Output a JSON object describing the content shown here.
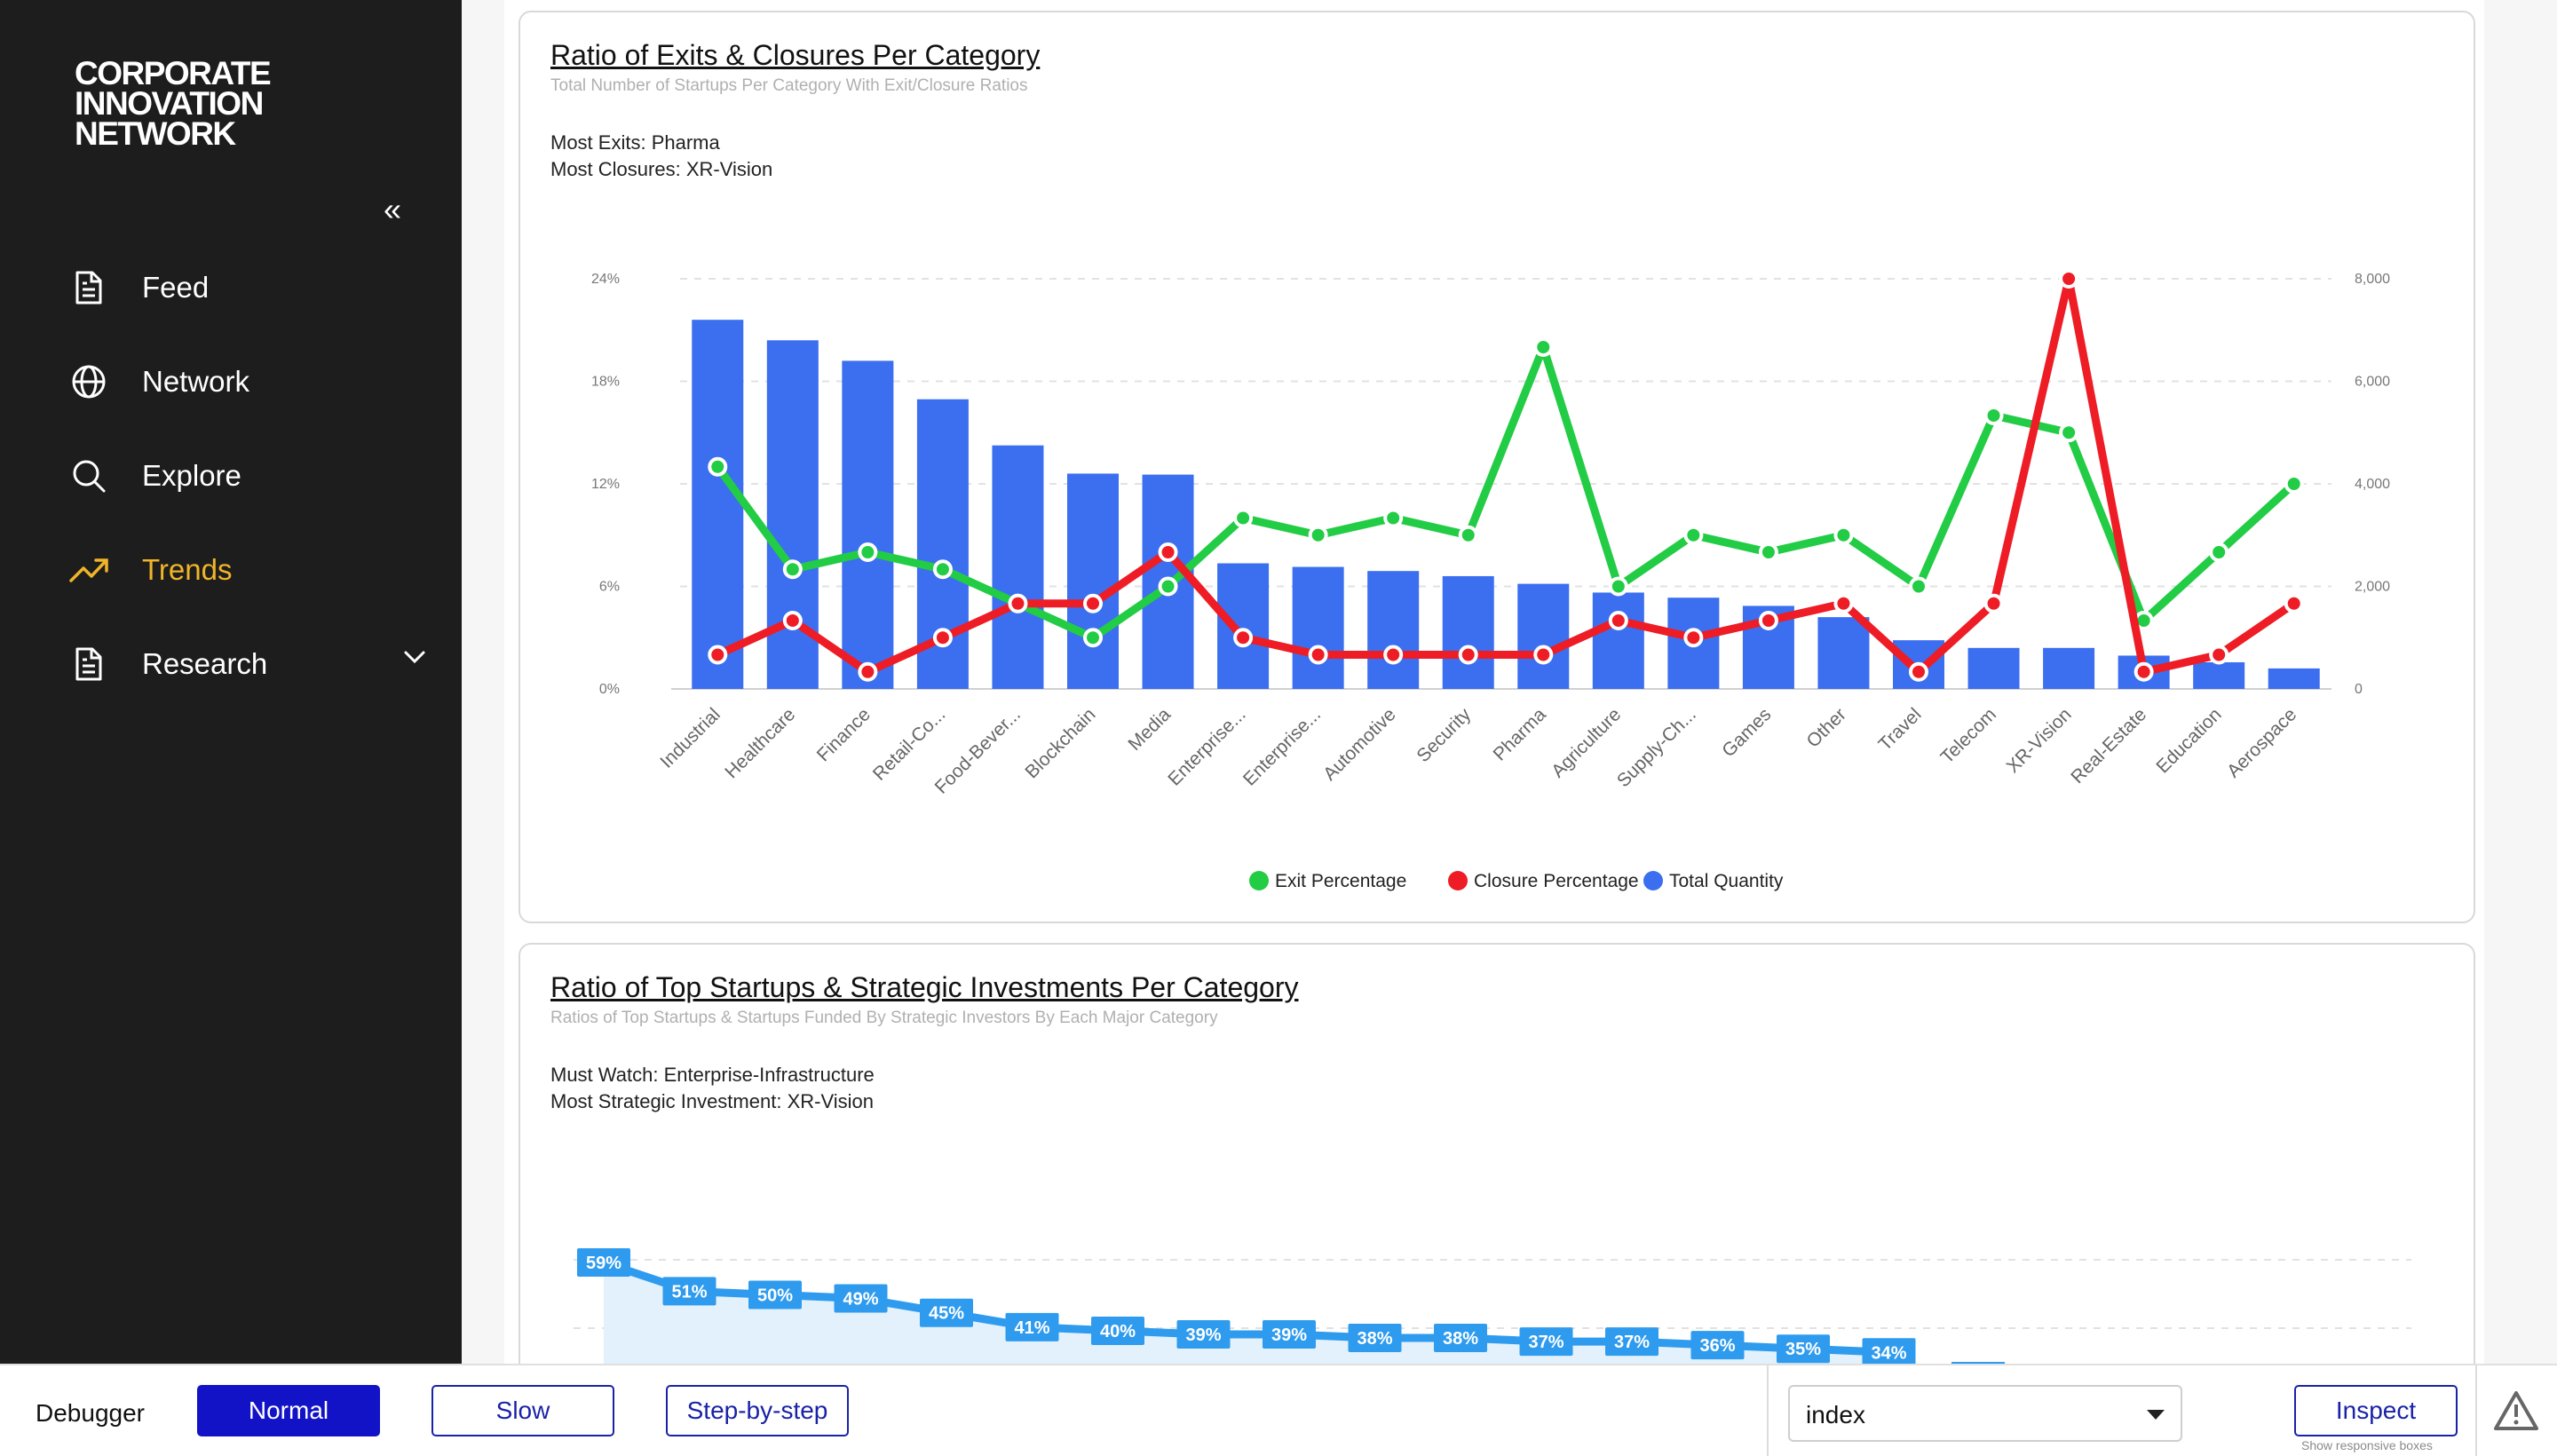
{
  "brand": {
    "line1": "CORPORATE",
    "line2": "INNOVATION",
    "line3": "NETWORK"
  },
  "sidebar": {
    "collapse_glyph": "«",
    "items": [
      {
        "label": "Feed",
        "icon": "document-icon"
      },
      {
        "label": "Network",
        "icon": "globe-icon"
      },
      {
        "label": "Explore",
        "icon": "search-icon"
      },
      {
        "label": "Trends",
        "icon": "trending-up-icon",
        "active": true
      },
      {
        "label": "Research",
        "icon": "document-icon",
        "has_chevron": true
      }
    ],
    "active_color": "#f0b429"
  },
  "card1": {
    "title": "Ratio of Exits & Closures Per Category",
    "subtitle": "Total Number of Startups Per Category With Exit/Closure Ratios",
    "stat1_label": "Most Exits:",
    "stat1_value": "Pharma",
    "stat2_label": "Most Closures:",
    "stat2_value": "XR-Vision"
  },
  "chart_data": [
    {
      "type": "bar+line",
      "categories": [
        "Industrial",
        "Healthcare",
        "Finance",
        "Retail-Co...",
        "Food-Bever...",
        "Blockchain",
        "Media",
        "Enterprise...",
        "Enterprise...",
        "Automotive",
        "Security",
        "Pharma",
        "Agriculture",
        "Supply-Ch...",
        "Games",
        "Other",
        "Travel",
        "Telecom",
        "XR-Vision",
        "Real-Estate",
        "Education",
        "Aerospace"
      ],
      "series": [
        {
          "name": "Total Quantity",
          "axis": "right",
          "kind": "bar",
          "color": "#3b6ff0",
          "values": [
            7200,
            6800,
            6400,
            5650,
            4750,
            4200,
            4180,
            2450,
            2380,
            2300,
            2200,
            2050,
            1880,
            1780,
            1620,
            1400,
            950,
            800,
            800,
            650,
            520,
            400
          ]
        },
        {
          "name": "Exit Percentage",
          "axis": "left",
          "kind": "line",
          "color": "#22cc44",
          "values": [
            13,
            7,
            8,
            7,
            5,
            3,
            6,
            10,
            9,
            10,
            9,
            20,
            6,
            9,
            8,
            9,
            6,
            16,
            15,
            4,
            8,
            12
          ]
        },
        {
          "name": "Closure Percentage",
          "axis": "left",
          "kind": "line",
          "color": "#ee1c25",
          "values": [
            2,
            4,
            1,
            3,
            5,
            5,
            8,
            3,
            2,
            2,
            2,
            2,
            4,
            3,
            4,
            5,
            1,
            5,
            24,
            1,
            2,
            5
          ]
        }
      ],
      "left_axis": {
        "ticks": [
          "0%",
          "6%",
          "12%",
          "18%",
          "24%"
        ],
        "range": [
          0,
          24
        ]
      },
      "right_axis": {
        "ticks": [
          "0",
          "2,000",
          "4,000",
          "6,000",
          "8,000"
        ],
        "range": [
          0,
          8000
        ]
      },
      "legend": [
        "Exit Percentage",
        "Closure Percentage",
        "Total Quantity"
      ],
      "legend_position": "bottom"
    },
    {
      "type": "area",
      "values": [
        59,
        51,
        50,
        49,
        45,
        41,
        40,
        39,
        39,
        38,
        38,
        37,
        37,
        36,
        35,
        34
      ],
      "labels": [
        "59%",
        "51%",
        "50%",
        "49%",
        "45%",
        "41%",
        "40%",
        "39%",
        "39%",
        "38%",
        "38%",
        "37%",
        "37%",
        "36%",
        "35%",
        "34%"
      ],
      "color": "#2f9bee"
    }
  ],
  "card2": {
    "title": "Ratio of Top Startups & Strategic Investments Per Category ",
    "subtitle": "Ratios of Top Startups & Startups Funded By Strategic Investors By Each Major Category",
    "stat1_label": "Must Watch:",
    "stat1_value": "Enterprise-Infrastructure",
    "stat2_label": "Most Strategic Investment:",
    "stat2_value": "XR-Vision"
  },
  "debugger": {
    "label": "Debugger",
    "buttons": [
      "Normal",
      "Slow",
      "Step-by-step"
    ],
    "select_value": "index",
    "inspect_label": "Inspect",
    "hint": "Show responsive boxes"
  }
}
